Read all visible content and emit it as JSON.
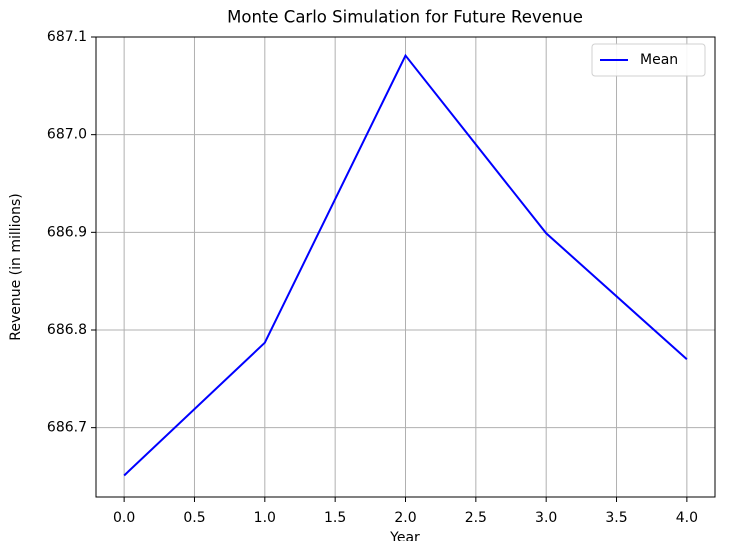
{
  "chart_data": {
    "type": "line",
    "title": "Monte Carlo Simulation for Future Revenue",
    "x_label": "Year",
    "y_label": "Revenue (in millions)",
    "x": [
      0,
      1,
      2,
      3,
      4
    ],
    "series": [
      {
        "name": "Mean",
        "color": "#0000ff",
        "values": [
          686.651,
          686.787,
          687.081,
          686.899,
          686.77
        ]
      }
    ],
    "xlim": [
      -0.2,
      4.2
    ],
    "xticks": [
      {
        "value": 0,
        "label": "0.0"
      },
      0.5,
      {
        "value": 1,
        "label": "1.0"
      },
      1.5,
      {
        "value": 2,
        "label": "2.0"
      },
      2.5,
      {
        "value": 3,
        "label": "3.0"
      },
      3.5,
      {
        "value": 4,
        "label": "4.0"
      }
    ],
    "ylim": [
      686.629,
      687.1
    ],
    "yticks": [
      686.7,
      686.8,
      686.9,
      {
        "value": 687.0,
        "label": "687.0"
      },
      687.1
    ],
    "grid": true,
    "legend": "upper right"
  }
}
